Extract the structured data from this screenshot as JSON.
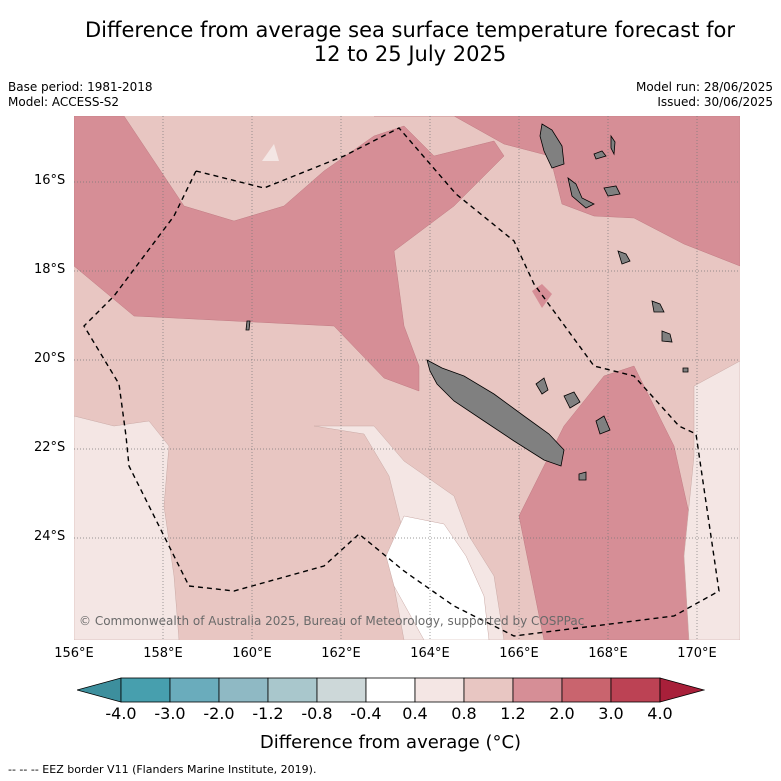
{
  "title_line1": "Difference from average sea surface temperature forecast for",
  "title_line2": "12 to 25 July 2025",
  "meta": {
    "base_period": "Base period: 1981-2018",
    "model": "Model: ACCESS-S2",
    "model_run": "Model run: 28/06/2025",
    "issued": "Issued: 30/06/2025"
  },
  "map": {
    "lat_labels": [
      "16°S",
      "18°S",
      "20°S",
      "22°S",
      "24°S"
    ],
    "lon_labels": [
      "156°E",
      "158°E",
      "160°E",
      "162°E",
      "164°E",
      "166°E",
      "168°E",
      "170°E"
    ],
    "copyright": "© Commonwealth of Australia 2025, Bureau of Meteorology, supported by COSPPac",
    "colors": {
      "ocean_low": "#f4e6e4",
      "ocean_0_4_0_8": "#f4e6e4",
      "ocean_0_8_1_2": "#e8c6c2",
      "ocean_1_2_2_0": "#d68e96",
      "land": "#808080"
    }
  },
  "colorbar": {
    "ticks": [
      "-4.0",
      "-3.0",
      "-2.0",
      "-1.2",
      "-0.8",
      "-0.4",
      "0.4",
      "0.8",
      "1.2",
      "2.0",
      "3.0",
      "4.0"
    ],
    "colors": [
      "#479fae",
      "#6aacbc",
      "#8fb9c4",
      "#a9c7cc",
      "#cdd8d9",
      "#ffffff",
      "#f4e6e4",
      "#e8c6c2",
      "#d68e96",
      "#c9646e",
      "#bc4254"
    ],
    "under_color": "#3d8f9d",
    "over_color": "#a8203a",
    "label": "Difference from average (°C)"
  },
  "footer": "--  --  -- EEZ border V11 (Flanders Marine Institute, 2019)."
}
